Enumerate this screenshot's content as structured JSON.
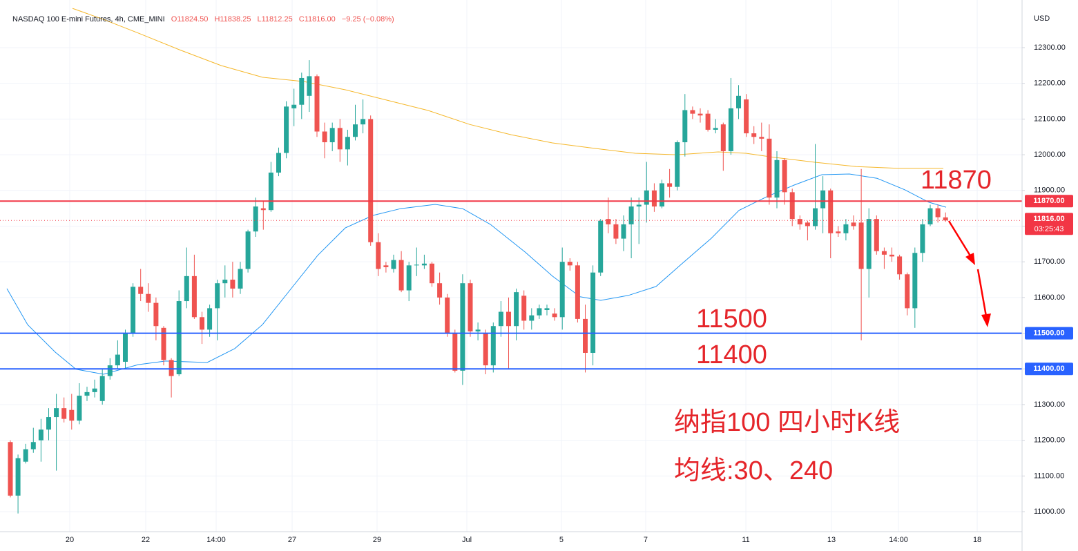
{
  "chart_data": {
    "type": "candlestick",
    "header": {
      "title": "NASDAQ 100 E-mini Futures, 4h, CME_MINI",
      "ohlc": [
        "O11824.50",
        "H11838.25",
        "L11812.25",
        "C11816.00"
      ],
      "change": "−9.25 (−0.08%)"
    },
    "currency": "USD",
    "up_color": "#26a69a",
    "down_color": "#ef5350",
    "candles": {
      "open": [
        11195,
        11045,
        11140,
        11175,
        11200,
        11230,
        11265,
        11290,
        11285,
        11255,
        11325,
        11335,
        11310,
        11380,
        11410,
        11420,
        11500,
        11630,
        11610,
        11585,
        11515,
        11425,
        11385,
        11590,
        11660,
        11545,
        11510,
        11570,
        11640,
        11650,
        11625,
        11680,
        11785,
        11850,
        11845,
        11950,
        12005,
        12130,
        12140,
        12165,
        12220,
        12065,
        12035,
        12075,
        12015,
        12050,
        12085,
        12100,
        11755,
        11690,
        11680,
        11705,
        11620,
        11690,
        11690,
        11695,
        11640,
        11600,
        11500,
        11395,
        11640,
        11505,
        11500,
        11410,
        11520,
        11560,
        11520,
        11605,
        11535,
        11550,
        11565,
        11555,
        11545,
        11700,
        11690,
        11540,
        11445,
        11670,
        11820,
        11805,
        11765,
        11805,
        11855,
        11860,
        11900,
        11855,
        11920,
        11910,
        12035,
        12125,
        12115,
        12115,
        12070,
        12085,
        12010,
        12130,
        12155,
        12060,
        12050,
        12045,
        11880,
        11985,
        11895,
        11820,
        11810,
        11800,
        11850,
        11900,
        11785,
        11780,
        11810,
        11810,
        11680,
        11820,
        11730,
        11720,
        11715,
        11665,
        11570,
        11725,
        11805,
        11850,
        11824.5
      ],
      "high": [
        11200,
        11160,
        11190,
        11235,
        11260,
        11290,
        11330,
        11320,
        11330,
        11360,
        11350,
        11370,
        11400,
        11430,
        11480,
        11510,
        11640,
        11680,
        11640,
        11600,
        11520,
        11430,
        11620,
        11740,
        11720,
        11560,
        11580,
        11650,
        11690,
        11700,
        11700,
        11790,
        11880,
        11870,
        11980,
        12020,
        12150,
        12185,
        12230,
        12265,
        12225,
        12090,
        12090,
        12100,
        12070,
        12140,
        12155,
        12110,
        11780,
        11700,
        11720,
        11730,
        11700,
        11740,
        11720,
        11700,
        11670,
        11610,
        11510,
        11665,
        11650,
        11530,
        11510,
        11530,
        11590,
        11600,
        11625,
        11620,
        11570,
        11580,
        11580,
        11570,
        11740,
        11710,
        11700,
        11580,
        11690,
        11820,
        11880,
        11820,
        11830,
        11880,
        11880,
        11980,
        11920,
        11930,
        11960,
        12040,
        12170,
        12135,
        12130,
        12125,
        12100,
        12090,
        12215,
        12195,
        12170,
        12080,
        12090,
        12085,
        12010,
        11990,
        11905,
        11830,
        11815,
        12030,
        11940,
        11905,
        11800,
        11820,
        11830,
        11960,
        11850,
        11830,
        11740,
        11740,
        11720,
        11670,
        11740,
        11820,
        11860,
        11860,
        11838.25
      ],
      "low": [
        11040,
        10995,
        11135,
        11165,
        11140,
        11200,
        11115,
        11250,
        11230,
        11245,
        11310,
        11320,
        11300,
        11370,
        11400,
        11400,
        11490,
        11590,
        11560,
        11480,
        11410,
        11320,
        11380,
        11570,
        11540,
        11470,
        11490,
        11480,
        11600,
        11600,
        11610,
        11670,
        11770,
        11790,
        11840,
        11940,
        11990,
        12080,
        12100,
        12120,
        12050,
        11990,
        12010,
        11980,
        11970,
        12040,
        12060,
        11745,
        11660,
        11670,
        11670,
        11615,
        11590,
        11660,
        11680,
        11630,
        11580,
        11490,
        11390,
        11355,
        11490,
        11480,
        11385,
        11390,
        11490,
        11400,
        11480,
        11510,
        11510,
        11540,
        11550,
        11535,
        11510,
        11675,
        11530,
        11390,
        11410,
        11660,
        11780,
        11750,
        11730,
        11710,
        11750,
        11810,
        11840,
        11850,
        11880,
        11900,
        11995,
        12100,
        12090,
        12065,
        12060,
        11955,
        12000,
        12100,
        12050,
        12030,
        12010,
        11860,
        11850,
        11860,
        11800,
        11790,
        11760,
        11790,
        11780,
        11710,
        11770,
        11760,
        11790,
        11480,
        11600,
        11720,
        11680,
        11700,
        11650,
        11550,
        11515,
        11700,
        11800,
        11810,
        11812.25
      ],
      "close": [
        11045,
        11150,
        11175,
        11195,
        11230,
        11265,
        11290,
        11260,
        11255,
        11325,
        11335,
        11345,
        11380,
        11410,
        11440,
        11500,
        11630,
        11610,
        11585,
        11520,
        11425,
        11380,
        11590,
        11660,
        11545,
        11510,
        11570,
        11640,
        11650,
        11625,
        11680,
        11785,
        11855,
        11845,
        11950,
        12005,
        12135,
        12140,
        12215,
        12220,
        12065,
        12035,
        12075,
        12015,
        12050,
        12085,
        12100,
        11755,
        11680,
        11685,
        11705,
        11620,
        11690,
        11692,
        11695,
        11640,
        11600,
        11500,
        11395,
        11640,
        11505,
        11510,
        11410,
        11520,
        11560,
        11520,
        11615,
        11535,
        11550,
        11570,
        11570,
        11545,
        11700,
        11690,
        11540,
        11445,
        11670,
        11815,
        11805,
        11765,
        11805,
        11855,
        11860,
        11900,
        11855,
        11920,
        11910,
        12035,
        12125,
        12115,
        12110,
        12070,
        12075,
        12010,
        12130,
        12165,
        12060,
        12050,
        12045,
        11880,
        11985,
        11895,
        11820,
        11805,
        11800,
        11850,
        11900,
        11780,
        11780,
        11805,
        11800,
        11680,
        11820,
        11730,
        11720,
        11715,
        11665,
        11570,
        11725,
        11805,
        11850,
        11825,
        11816
      ]
    },
    "moving_averages": [
      {
        "color": "#2196f3",
        "x": [
          -0.45,
          2.25,
          5.86,
          8.56,
          12.16,
          16.67,
          20.27,
          25.68,
          29.28,
          32.88,
          36.49,
          40.09,
          43.69,
          47.3,
          50.9,
          55.41,
          59.01,
          62.61,
          67.12,
          70.72,
          74.32,
          77.03,
          80.63,
          84.23,
          87.84,
          91.44,
          95.05,
          98.65,
          102.25,
          105.86,
          109.46,
          113.06,
          116.67,
          119.82,
          122.07
        ],
        "values": [
          11625,
          11524,
          11447,
          11399,
          11385,
          11412,
          11422,
          11418,
          11457,
          11524,
          11621,
          11718,
          11795,
          11830,
          11849,
          11861,
          11849,
          11805,
          11728,
          11660,
          11602,
          11592,
          11606,
          11631,
          11699,
          11766,
          11844,
          11882,
          11915,
          11944,
          11946,
          11934,
          11902,
          11867,
          11853
        ]
      },
      {
        "color": "#f5b72a",
        "x": [
          8.11,
          12.16,
          16.67,
          22.07,
          27.48,
          32.88,
          38.29,
          43.69,
          49.1,
          54.5,
          59.91,
          65.32,
          70.72,
          76.13,
          81.53,
          86.94,
          92.34,
          95.95,
          99.55,
          104.95,
          110.36,
          115.77,
          121.71
        ],
        "values": [
          12410,
          12379,
          12341,
          12294,
          12250,
          12217,
          12205,
          12182,
          12153,
          12124,
          12085,
          12056,
          12033,
          12018,
          12004,
          12000,
          12008,
          12004,
          11993,
          11979,
          11967,
          11962,
          11962
        ]
      }
    ],
    "levels": [
      {
        "value": 11870,
        "label": "11870.00",
        "color": "#f23645"
      },
      {
        "value": 11500,
        "label": "11500.00",
        "color": "#2962ff"
      },
      {
        "value": 11400,
        "label": "11400.00",
        "color": "#2962ff"
      }
    ],
    "last_price": {
      "value": 11816,
      "label": "11816.00",
      "countdown": "03:25:43",
      "color": "#f23645"
    },
    "annotations": [
      "11870",
      "11500",
      "11400",
      "纳指100 四小时K线",
      "均线:30、240"
    ],
    "xlim": [
      -1.35,
      131.98
    ],
    "xticks": [
      {
        "value": 7.75,
        "label": "20"
      },
      {
        "value": 17.66,
        "label": "22"
      },
      {
        "value": 26.85,
        "label": "14:00"
      },
      {
        "value": 36.76,
        "label": "27"
      },
      {
        "value": 47.84,
        "label": "29"
      },
      {
        "value": 59.55,
        "label": "Jul"
      },
      {
        "value": 71.89,
        "label": "5"
      },
      {
        "value": 82.88,
        "label": "7"
      },
      {
        "value": 95.95,
        "label": "11"
      },
      {
        "value": 107.12,
        "label": "13"
      },
      {
        "value": 115.86,
        "label": "14:00"
      },
      {
        "value": 126.13,
        "label": "18"
      }
    ],
    "ylim": [
      10944,
      12433.5
    ],
    "yticks": [
      {
        "value": 11000,
        "label": "11000.00"
      },
      {
        "value": 11100,
        "label": "11100.00"
      },
      {
        "value": 11200,
        "label": "11200.00"
      },
      {
        "value": 11300,
        "label": "11300.00"
      },
      {
        "value": 11400,
        "label": "11400.00"
      },
      {
        "value": 11500,
        "label": "11500.00"
      },
      {
        "value": 11600,
        "label": "11600.00"
      },
      {
        "value": 11700,
        "label": "11700.00"
      },
      {
        "value": 11800,
        "label": "11800.00"
      },
      {
        "value": 11900,
        "label": "11900.00"
      },
      {
        "value": 12000,
        "label": "12000.00"
      },
      {
        "value": 12100,
        "label": "12100.00"
      },
      {
        "value": 12200,
        "label": "12200.00"
      },
      {
        "value": 12300,
        "label": "12300.00"
      }
    ],
    "grid": true
  }
}
